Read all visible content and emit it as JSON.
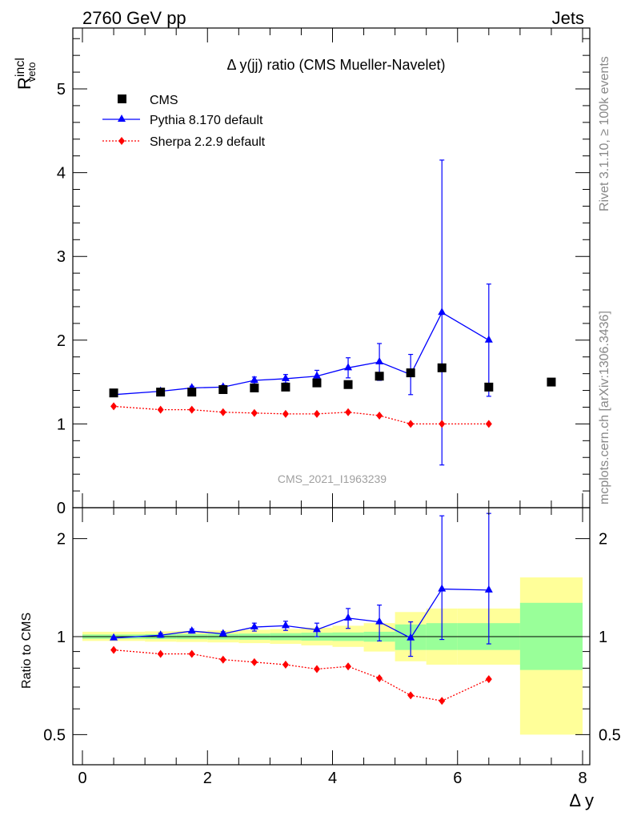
{
  "header": {
    "left": "2760 GeV pp",
    "right": "Jets"
  },
  "side": {
    "rivet": "Rivet 3.1.10, ≥ 100k events",
    "mcplots": "mcplots.cern.ch [arXiv:1306.3436]"
  },
  "colors": {
    "cms": "#000000",
    "pythia": "#0000ff",
    "sherpa": "#ff0000",
    "band_inner": "#99ff99",
    "band_outer": "#ffff99"
  },
  "chart_data": [
    {
      "type": "scatter",
      "panel": "main",
      "title": "Δ y(jj) ratio (CMS Mueller-Navelet)",
      "ylabel_main": "R",
      "ylabel_sup": "incl",
      "ylabel_sub": "veto",
      "watermark": "CMS_2021_I1963239",
      "ylim": [
        0,
        5.8
      ],
      "xlim": [
        -0.2,
        8.1
      ],
      "yticks": [
        "0",
        "1",
        "2",
        "3",
        "4",
        "5"
      ],
      "legend_position": "top-left",
      "series": [
        {
          "name": "CMS",
          "marker": "square",
          "x": [
            0.5,
            1.25,
            1.75,
            2.25,
            2.75,
            3.25,
            3.75,
            4.25,
            4.75,
            5.25,
            5.75,
            6.5,
            7.5
          ],
          "y": [
            1.37,
            1.38,
            1.38,
            1.41,
            1.43,
            1.44,
            1.49,
            1.47,
            1.57,
            1.61,
            1.67,
            1.44,
            1.5
          ]
        },
        {
          "name": "Pythia 8.170 default",
          "marker": "triangle",
          "x": [
            0.5,
            1.25,
            1.75,
            2.25,
            2.75,
            3.25,
            3.75,
            4.25,
            4.75,
            5.25,
            5.75,
            6.5
          ],
          "y": [
            1.35,
            1.39,
            1.43,
            1.44,
            1.52,
            1.54,
            1.57,
            1.67,
            1.74,
            1.59,
            2.33,
            2.0
          ],
          "err": [
            0.01,
            0.02,
            0.02,
            0.02,
            0.04,
            0.05,
            0.07,
            0.12,
            0.22,
            0.24,
            1.82,
            0.67
          ]
        },
        {
          "name": "Sherpa 2.2.9 default",
          "marker": "diamond",
          "x": [
            0.5,
            1.25,
            1.75,
            2.25,
            2.75,
            3.25,
            3.75,
            4.25,
            4.75,
            5.25,
            5.75,
            6.5
          ],
          "y": [
            1.21,
            1.17,
            1.17,
            1.14,
            1.13,
            1.12,
            1.12,
            1.14,
            1.1,
            1.0,
            1.0,
            1.0
          ]
        }
      ]
    },
    {
      "type": "scatter",
      "panel": "ratio",
      "ylabel": "Ratio to CMS",
      "xlabel": "Δ y",
      "ylim": [
        0.4,
        2.4
      ],
      "scale": "log",
      "yticks": [
        "0.5",
        "1",
        "2"
      ],
      "xticks": [
        "0",
        "2",
        "4",
        "6",
        "8"
      ],
      "bands": {
        "x_edges": [
          0,
          1,
          1.5,
          2,
          2.5,
          3,
          3.5,
          4,
          4.5,
          5,
          5.5,
          6,
          7,
          8
        ],
        "inner_lo": [
          0.985,
          0.983,
          0.982,
          0.98,
          0.978,
          0.975,
          0.972,
          0.97,
          0.965,
          0.91,
          0.91,
          0.91,
          0.79
        ],
        "inner_hi": [
          1.015,
          1.017,
          1.018,
          1.02,
          1.022,
          1.025,
          1.028,
          1.03,
          1.035,
          1.09,
          1.1,
          1.1,
          1.27
        ],
        "outer_lo": [
          0.97,
          0.965,
          0.963,
          0.96,
          0.955,
          0.95,
          0.94,
          0.93,
          0.9,
          0.84,
          0.82,
          0.82,
          0.5
        ],
        "outer_hi": [
          1.035,
          1.038,
          1.04,
          1.045,
          1.05,
          1.055,
          1.065,
          1.08,
          1.1,
          1.19,
          1.22,
          1.22,
          1.52
        ]
      },
      "series": [
        {
          "name": "Pythia 8.170 default",
          "x": [
            0.5,
            1.25,
            1.75,
            2.25,
            2.75,
            3.25,
            3.75,
            4.25,
            4.75,
            5.25,
            5.75,
            6.5
          ],
          "y": [
            0.99,
            1.01,
            1.04,
            1.02,
            1.07,
            1.08,
            1.05,
            1.14,
            1.11,
            0.99,
            1.4,
            1.39
          ],
          "err_lo": [
            0.01,
            0.015,
            0.015,
            0.015,
            0.03,
            0.035,
            0.05,
            0.08,
            0.14,
            0.12,
            0.42,
            0.44
          ],
          "err_hi": [
            0.01,
            0.015,
            0.015,
            0.015,
            0.03,
            0.035,
            0.05,
            0.08,
            0.14,
            0.12,
            0.95,
            1.0
          ]
        },
        {
          "name": "Sherpa 2.2.9 default",
          "x": [
            0.5,
            1.25,
            1.75,
            2.25,
            2.75,
            3.25,
            3.75,
            4.25,
            4.75,
            5.25,
            5.75,
            6.5
          ],
          "y": [
            0.91,
            0.885,
            0.885,
            0.85,
            0.835,
            0.82,
            0.795,
            0.81,
            0.745,
            0.66,
            0.635,
            0.74
          ]
        }
      ]
    }
  ]
}
